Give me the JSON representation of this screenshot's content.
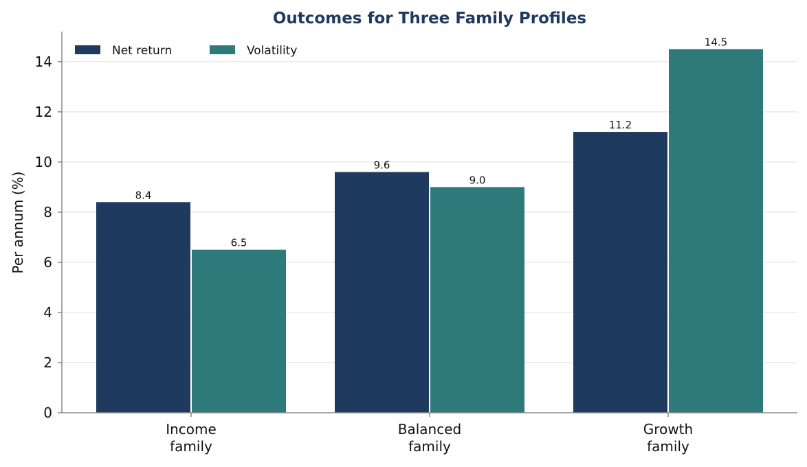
{
  "chart_data": {
    "type": "bar",
    "title": "Outcomes for Three Family Profiles",
    "xlabel": "",
    "ylabel": "Per annum (%)",
    "categories": [
      [
        "Income",
        "family"
      ],
      [
        "Balanced",
        "family"
      ],
      [
        "Growth",
        "family"
      ]
    ],
    "series": [
      {
        "name": "Net return",
        "color": "#1f3a5f",
        "values": [
          8.4,
          9.6,
          11.2
        ]
      },
      {
        "name": "Volatility",
        "color": "#2e7a7b",
        "values": [
          6.5,
          9.0,
          14.5
        ]
      }
    ],
    "value_labels": [
      [
        "8.4",
        "9.6",
        "11.2"
      ],
      [
        "6.5",
        "9.0",
        "14.5"
      ]
    ],
    "ylim": [
      0,
      15.2
    ],
    "yticks": [
      0,
      2,
      4,
      6,
      8,
      10,
      12,
      14
    ],
    "ytick_labels": [
      "0",
      "2",
      "4",
      "6",
      "8",
      "10",
      "12",
      "14"
    ],
    "grid": "horizontal",
    "legend_position": "top-left",
    "title_color": "#1f3a5f",
    "grid_color": "#e3e3e3",
    "axis_color": "#888888"
  }
}
